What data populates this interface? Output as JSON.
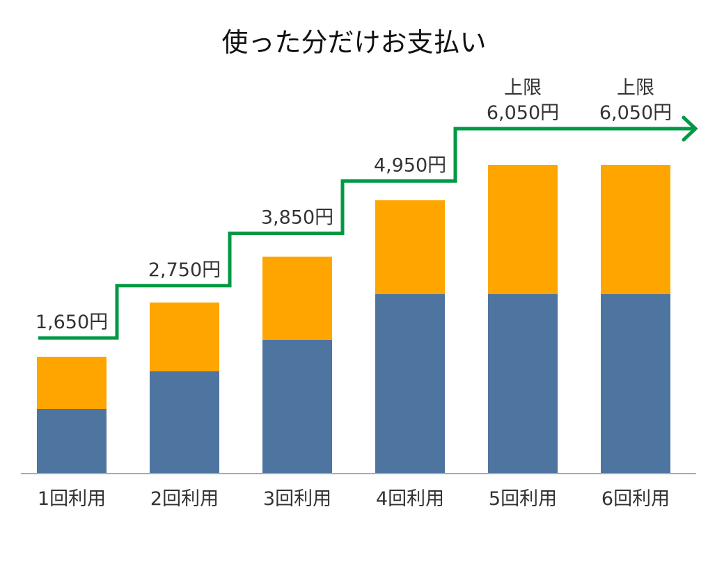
{
  "chart_data": {
    "type": "bar",
    "stacked": true,
    "title": "使った分だけお支払い",
    "categories": [
      "1回利用",
      "2回利用",
      "3回利用",
      "4回利用",
      "5回利用",
      "6回利用"
    ],
    "series": [
      {
        "values": [
          92,
          146,
          191,
          257,
          257,
          257
        ],
        "color": "#4e74a0"
      },
      {
        "values": [
          75,
          99,
          120,
          135,
          186,
          186
        ],
        "color": "#ffa500"
      }
    ],
    "ylim": [
      0,
      500
    ],
    "grid": false,
    "step_line": {
      "color": "#009944",
      "values": [
        1650,
        2750,
        3850,
        4950,
        6050,
        6050
      ],
      "labels": [
        "1,650円",
        "2,750円",
        "3,850円",
        "4,950円",
        "6,050円",
        "6,050円"
      ],
      "cap_prefix": [
        "",
        "",
        "",
        "",
        "上限",
        "上限"
      ],
      "arrow_end": true
    },
    "axis_color": "#aaaaaa"
  }
}
